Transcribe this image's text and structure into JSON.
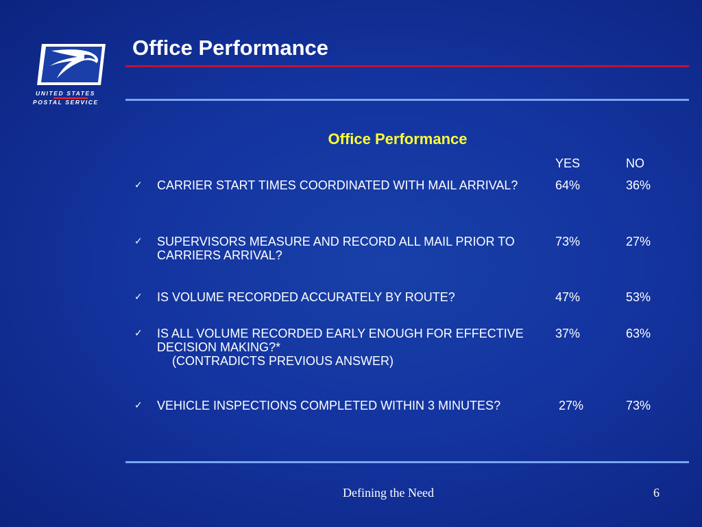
{
  "logo": {
    "line1": "UNITED STATES",
    "line2": "POSTAL SERVICE",
    "icon": "eagle-logo-icon",
    "colors": {
      "mark": "#1a3fa8",
      "panel": "#ffffff",
      "accent": "#c8102e"
    }
  },
  "title": "Office Performance",
  "subtitle": "Office Performance",
  "columns": {
    "yes": "YES",
    "no": "NO"
  },
  "rows": [
    {
      "question": "CARRIER START TIMES COORDINATED WITH MAIL ARRIVAL?",
      "note": "",
      "yes": "64%",
      "no": "36%"
    },
    {
      "question": "SUPERVISORS MEASURE AND RECORD ALL MAIL PRIOR TO CARRIERS ARRIVAL?",
      "note": "",
      "yes": "73%",
      "no": "27%"
    },
    {
      "question": "IS VOLUME RECORDED ACCURATELY BY ROUTE?",
      "note": "",
      "yes": "47%",
      "no": "53%"
    },
    {
      "question": "IS ALL VOLUME RECORDED EARLY ENOUGH FOR EFFECTIVE DECISION MAKING?*",
      "note": "(CONTRADICTS PREVIOUS ANSWER)",
      "yes": "37%",
      "no": "63%"
    },
    {
      "question": "VEHICLE INSPECTIONS COMPLETED WITHIN 3 MINUTES?",
      "note": "",
      "yes": "27%",
      "no": "73%"
    }
  ],
  "footer": {
    "text": "Defining the Need",
    "page": "6"
  },
  "colors": {
    "background": "#1434a0",
    "subtitle": "#ffff33",
    "rule_red": "#c8102e",
    "rule_blue": "#7aa6f0"
  }
}
